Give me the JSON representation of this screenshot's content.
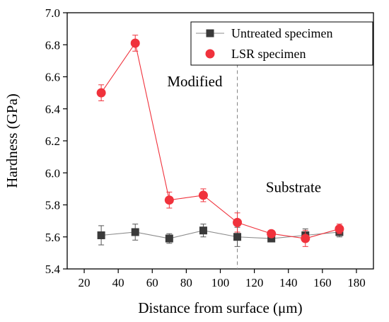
{
  "chart_data": {
    "type": "line",
    "xlabel": "Distance from surface (μm)",
    "ylabel": "Hardness (GPa)",
    "xlim": [
      10,
      190
    ],
    "ylim": [
      5.4,
      7.0
    ],
    "xticks": [
      20,
      40,
      60,
      80,
      100,
      120,
      140,
      160,
      180
    ],
    "yticks": [
      5.4,
      5.6,
      5.8,
      6.0,
      6.2,
      6.4,
      6.6,
      6.8,
      7.0
    ],
    "x_tick_labels": [
      "20",
      "40",
      "60",
      "80",
      "100",
      "120",
      "140",
      "160",
      "180"
    ],
    "y_tick_labels": [
      "5.4",
      "5.6",
      "5.8",
      "6.0",
      "6.2",
      "6.4",
      "6.6",
      "6.8",
      "7.0"
    ],
    "legend_position": "top-right",
    "grid": false,
    "series": [
      {
        "name": "Untreated specimen",
        "marker": "square",
        "color": "#3a3a3a",
        "line_color": "#8c8c8c",
        "x": [
          30,
          50,
          70,
          90,
          110,
          130,
          150,
          170
        ],
        "y": [
          5.61,
          5.63,
          5.59,
          5.64,
          5.6,
          5.59,
          5.61,
          5.63
        ],
        "error": [
          0.06,
          0.05,
          0.03,
          0.04,
          0.06,
          0.02,
          0.04,
          0.03
        ]
      },
      {
        "name": "LSR specimen",
        "marker": "circle",
        "color": "#f0323c",
        "line_color": "#f0323c",
        "x": [
          30,
          50,
          70,
          90,
          110,
          130,
          150,
          170
        ],
        "y": [
          6.5,
          6.81,
          5.83,
          5.86,
          5.69,
          5.62,
          5.59,
          5.65
        ],
        "error": [
          0.05,
          0.05,
          0.05,
          0.04,
          0.06,
          0.02,
          0.05,
          0.03
        ]
      }
    ],
    "divider_x": 110,
    "annotations": [
      {
        "text": "Modified",
        "x": 85,
        "y": 6.54
      },
      {
        "text": "Substrate",
        "x": 143,
        "y": 5.88
      }
    ]
  }
}
